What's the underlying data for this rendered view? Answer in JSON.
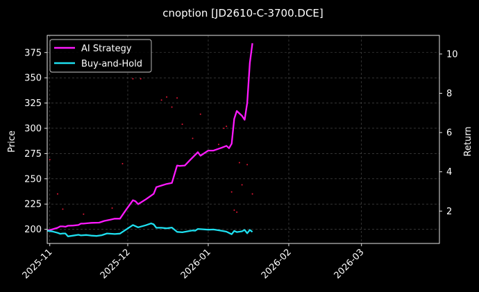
{
  "chart_data": {
    "type": "line",
    "title": "cnoption [JD2610-C-3700.DCE]",
    "xlabel": "",
    "ylabel": "Price",
    "y2label": "Return",
    "x_ticks": [
      "2025-11",
      "2025-12",
      "2026-01",
      "2026-02",
      "2026-03"
    ],
    "x_range": [
      "2025-10-31",
      "2026-03-31"
    ],
    "ylim": [
      186,
      392
    ],
    "y_ticks": [
      200,
      225,
      250,
      275,
      300,
      325,
      350,
      375
    ],
    "y2lim": [
      0.35,
      10.95
    ],
    "y2_ticks": [
      2,
      4,
      6,
      8,
      10
    ],
    "grid": true,
    "legend_position": "top-left",
    "series": [
      {
        "name": "AI Strategy",
        "axis": "right",
        "color": "#ff1aff",
        "points": [
          [
            "2025-10-31",
            1.0
          ],
          [
            "2025-11-02",
            1.07
          ],
          [
            "2025-11-04",
            1.15
          ],
          [
            "2025-11-05",
            1.22
          ],
          [
            "2025-11-06",
            1.22
          ],
          [
            "2025-11-07",
            1.2
          ],
          [
            "2025-11-08",
            1.25
          ],
          [
            "2025-11-10",
            1.26
          ],
          [
            "2025-11-12",
            1.29
          ],
          [
            "2025-11-13",
            1.36
          ],
          [
            "2025-11-14",
            1.36
          ],
          [
            "2025-11-17",
            1.4
          ],
          [
            "2025-11-20",
            1.41
          ],
          [
            "2025-11-22",
            1.5
          ],
          [
            "2025-11-24",
            1.55
          ],
          [
            "2025-11-26",
            1.61
          ],
          [
            "2025-11-28",
            1.61
          ],
          [
            "2025-11-30",
            2.0
          ],
          [
            "2025-12-03",
            2.55
          ],
          [
            "2025-12-04",
            2.5
          ],
          [
            "2025-12-05",
            2.35
          ],
          [
            "2025-12-08",
            2.6
          ],
          [
            "2025-12-11",
            2.88
          ],
          [
            "2025-12-12",
            3.22
          ],
          [
            "2025-12-14",
            3.3
          ],
          [
            "2025-12-16",
            3.38
          ],
          [
            "2025-12-18",
            3.43
          ],
          [
            "2025-12-20",
            4.32
          ],
          [
            "2025-12-21",
            4.3
          ],
          [
            "2025-12-23",
            4.32
          ],
          [
            "2025-12-25",
            4.6
          ],
          [
            "2025-12-28",
            5.0
          ],
          [
            "2025-12-29",
            4.82
          ],
          [
            "2026-01-01",
            5.08
          ],
          [
            "2026-01-03",
            5.08
          ],
          [
            "2026-01-06",
            5.22
          ],
          [
            "2026-01-08",
            5.32
          ],
          [
            "2026-01-09",
            5.2
          ],
          [
            "2026-01-10",
            5.43
          ],
          [
            "2026-01-11",
            6.7
          ],
          [
            "2026-01-12",
            7.1
          ],
          [
            "2026-01-14",
            6.85
          ],
          [
            "2026-01-15",
            6.65
          ],
          [
            "2026-01-16",
            7.5
          ],
          [
            "2026-01-17",
            9.55
          ],
          [
            "2026-01-18",
            10.55
          ]
        ]
      },
      {
        "name": "Buy-and-Hold",
        "axis": "right",
        "color": "#1ee0f0",
        "points": [
          [
            "2025-10-31",
            1.0
          ],
          [
            "2025-11-02",
            0.96
          ],
          [
            "2025-11-04",
            0.89
          ],
          [
            "2025-11-05",
            0.84
          ],
          [
            "2025-11-06",
            0.86
          ],
          [
            "2025-11-07",
            0.86
          ],
          [
            "2025-11-08",
            0.71
          ],
          [
            "2025-11-10",
            0.75
          ],
          [
            "2025-11-12",
            0.79
          ],
          [
            "2025-11-13",
            0.76
          ],
          [
            "2025-11-15",
            0.78
          ],
          [
            "2025-11-17",
            0.75
          ],
          [
            "2025-11-19",
            0.73
          ],
          [
            "2025-11-21",
            0.77
          ],
          [
            "2025-11-23",
            0.86
          ],
          [
            "2025-11-26",
            0.83
          ],
          [
            "2025-11-28",
            0.85
          ],
          [
            "2025-11-30",
            1.03
          ],
          [
            "2025-12-03",
            1.29
          ],
          [
            "2025-12-05",
            1.17
          ],
          [
            "2025-12-08",
            1.28
          ],
          [
            "2025-12-10",
            1.37
          ],
          [
            "2025-12-11",
            1.32
          ],
          [
            "2025-12-12",
            1.15
          ],
          [
            "2025-12-14",
            1.15
          ],
          [
            "2025-12-16",
            1.12
          ],
          [
            "2025-12-18",
            1.16
          ],
          [
            "2025-12-20",
            0.94
          ],
          [
            "2025-12-22",
            0.92
          ],
          [
            "2025-12-25",
            0.99
          ],
          [
            "2025-12-26",
            1.01
          ],
          [
            "2025-12-27",
            1.0
          ],
          [
            "2025-12-28",
            1.09
          ],
          [
            "2025-12-30",
            1.07
          ],
          [
            "2026-01-01",
            1.05
          ],
          [
            "2026-01-03",
            1.06
          ],
          [
            "2026-01-06",
            1.0
          ],
          [
            "2026-01-08",
            0.95
          ],
          [
            "2026-01-10",
            0.82
          ],
          [
            "2026-01-11",
            0.99
          ],
          [
            "2026-01-12",
            0.93
          ],
          [
            "2026-01-14",
            0.97
          ],
          [
            "2026-01-15",
            1.04
          ],
          [
            "2026-01-16",
            0.87
          ],
          [
            "2026-01-17",
            1.04
          ],
          [
            "2026-01-18",
            0.94
          ]
        ]
      }
    ],
    "scatter": {
      "name": "",
      "axis": "left",
      "color": "#ff1a3c",
      "points": [
        [
          "2025-11-01",
          269
        ],
        [
          "2025-11-04",
          235
        ],
        [
          "2025-11-06",
          220
        ],
        [
          "2025-11-14",
          215
        ],
        [
          "2025-11-25",
          221
        ],
        [
          "2025-11-29",
          265
        ],
        [
          "2025-12-03",
          349
        ],
        [
          "2025-12-06",
          349
        ],
        [
          "2025-12-14",
          328
        ],
        [
          "2025-12-16",
          331
        ],
        [
          "2025-12-18",
          321
        ],
        [
          "2025-12-20",
          330
        ],
        [
          "2025-12-22",
          304
        ],
        [
          "2026-01-05",
          284
        ],
        [
          "2026-01-07",
          300
        ],
        [
          "2026-01-08",
          302
        ],
        [
          "2026-01-10",
          237
        ],
        [
          "2026-01-11",
          219
        ],
        [
          "2026-01-12",
          217
        ],
        [
          "2026-01-13",
          266
        ],
        [
          "2026-01-14",
          244
        ],
        [
          "2026-01-16",
          264
        ],
        [
          "2026-01-18",
          235
        ],
        [
          "2025-12-29",
          314
        ],
        [
          "2025-12-26",
          290
        ]
      ]
    }
  }
}
